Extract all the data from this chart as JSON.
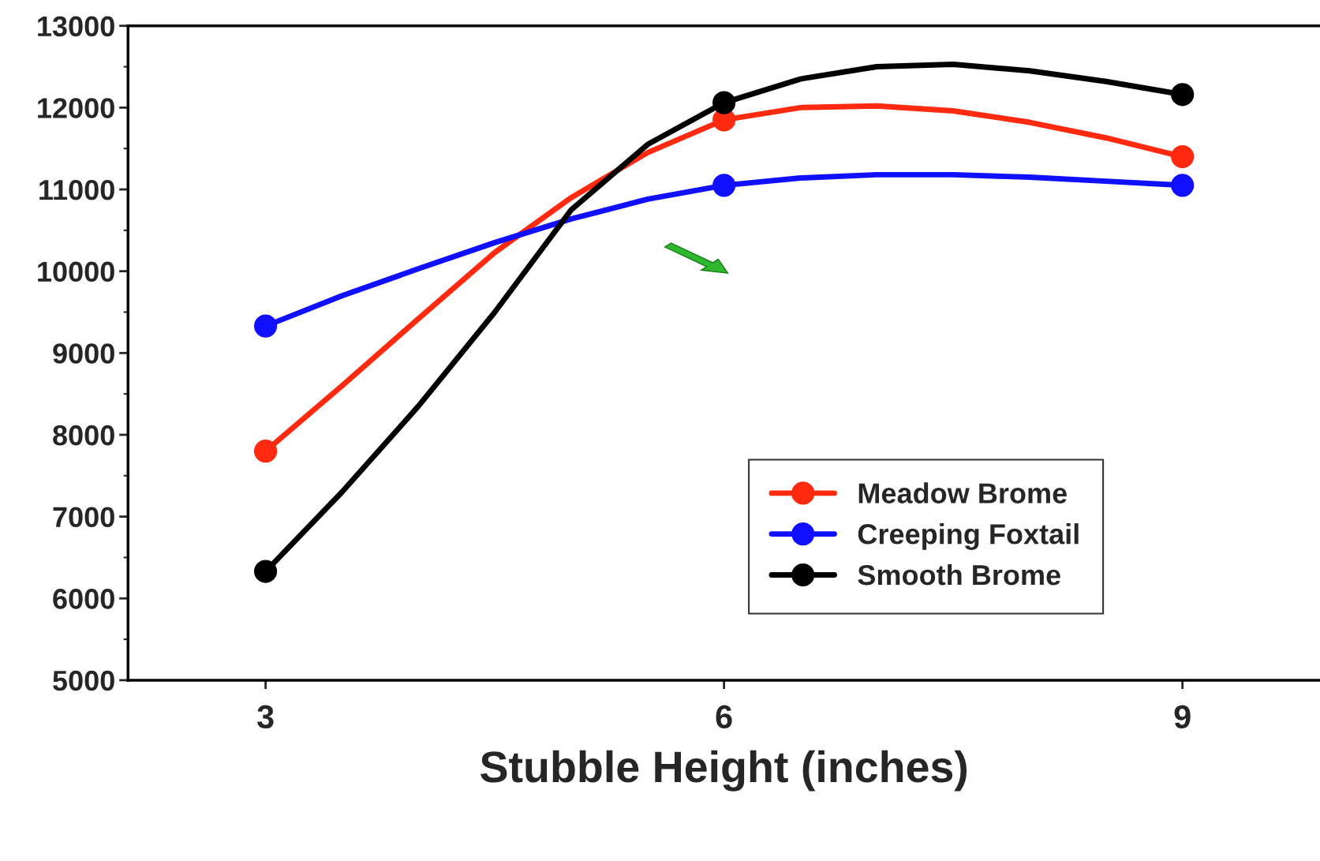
{
  "chart_data": {
    "type": "line",
    "xlabel": "Stubble Height (inches)",
    "x": [
      3,
      3.5,
      4,
      4.5,
      5,
      5.5,
      6,
      6.5,
      7,
      7.5,
      8,
      8.5,
      9
    ],
    "series": [
      {
        "name": "Meadow Brome",
        "color": "#ff2a10",
        "marker": "none",
        "values": [
          7800,
          8600,
          9420,
          10230,
          10900,
          11450,
          11850,
          12000,
          12020,
          11960,
          11820,
          11630,
          11400
        ]
      },
      {
        "name": "Creeping Foxtail",
        "color": "#1010ff",
        "marker": "none",
        "values": [
          9330,
          9700,
          10030,
          10350,
          10640,
          10880,
          11050,
          11140,
          11180,
          11180,
          11150,
          11100,
          11050
        ]
      },
      {
        "name": "Smooth Brome",
        "color": "#000000",
        "marker": "none",
        "values": [
          6330,
          7300,
          8350,
          9500,
          10750,
          11550,
          12060,
          12350,
          12500,
          12530,
          12450,
          12320,
          12160
        ]
      },
      {
        "type": "scatter",
        "color": "#ff2a10",
        "marker": "circle",
        "x": [
          3,
          6,
          9
        ],
        "values": [
          7800,
          11850,
          11400
        ]
      },
      {
        "type": "scatter",
        "color": "#1010ff",
        "marker": "circle",
        "x": [
          3,
          6,
          9
        ],
        "values": [
          9330,
          11050,
          11050
        ]
      },
      {
        "type": "scatter",
        "color": "#000000",
        "marker": "circle",
        "x": [
          3,
          6,
          9
        ],
        "values": [
          6330,
          12060,
          12160
        ]
      }
    ],
    "xlim": [
      2.1,
      9.9
    ],
    "xticks": [
      3,
      6,
      9
    ],
    "ylim": [
      5000,
      13000
    ],
    "yticks": [
      5000,
      {
        "value": 5500,
        "label": null
      },
      6000,
      {
        "value": 6500,
        "label": null
      },
      7000,
      {
        "value": 7500,
        "label": null
      },
      8000,
      {
        "value": 8500,
        "label": null
      },
      9000,
      {
        "value": 9500,
        "label": null
      },
      10000,
      {
        "value": 10500,
        "label": null
      },
      11000,
      {
        "value": 11500,
        "label": null
      },
      12000,
      {
        "value": 12500,
        "label": null
      },
      13000
    ],
    "grid": false,
    "legend": "bottom right",
    "line_style": "solid"
  }
}
